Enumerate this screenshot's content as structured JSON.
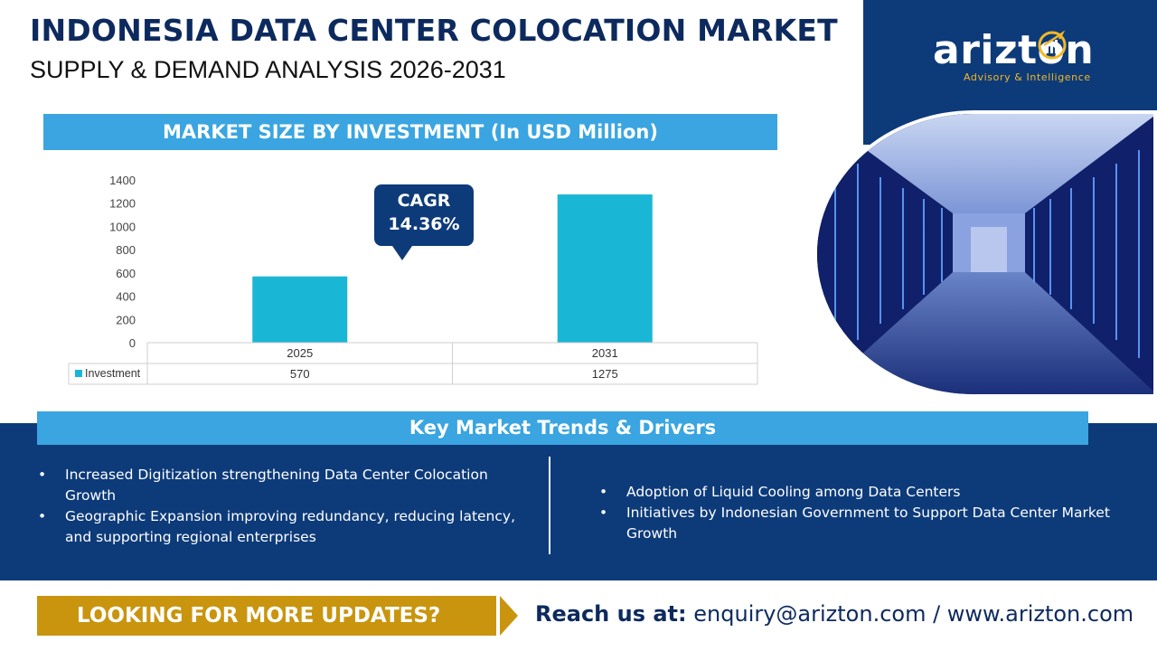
{
  "header": {
    "title": "INDONESIA DATA CENTER COLOCATION MARKET",
    "subtitle": "SUPPLY & DEMAND ANALYSIS 2026-2031"
  },
  "brand": {
    "logo_text": "arizton",
    "tagline": "Advisory & Intelligence"
  },
  "chart_section": {
    "banner": "MARKET SIZE BY INVESTMENT (In USD Million)",
    "cagr_label": "CAGR",
    "cagr_value": "14.36%"
  },
  "chart_data": {
    "type": "bar",
    "categories": [
      "2025",
      "2031"
    ],
    "series": [
      {
        "name": "Investment",
        "values": [
          570,
          1275
        ]
      }
    ],
    "ylim": [
      0,
      1400
    ],
    "yticks": [
      0,
      200,
      400,
      600,
      800,
      1000,
      1200,
      1400
    ],
    "data_table": true,
    "grid": false
  },
  "trends": {
    "banner": "Key Market Trends & Drivers",
    "left": [
      "Increased Digitization strengthening Data Center Colocation Growth",
      "Geographic Expansion improving redundancy, reducing latency, and supporting regional enterprises"
    ],
    "right": [
      "Adoption of Liquid Cooling among Data Centers",
      "Initiatives by Indonesian Government to Support Data Center Market Growth"
    ]
  },
  "footer": {
    "cta": "LOOKING FOR MORE UPDATES?",
    "reach_label": "Reach us at:",
    "contact": "enquiry@arizton.com / www.arizton.com"
  },
  "colors": {
    "navy": "#0d3b7a",
    "sky": "#3aa5e0",
    "bar": "#1ab6d6",
    "gold": "#c9950f",
    "accent": "#f2b826"
  },
  "icons": [
    "bar-chart-logo-icon",
    "data-center-photo"
  ]
}
